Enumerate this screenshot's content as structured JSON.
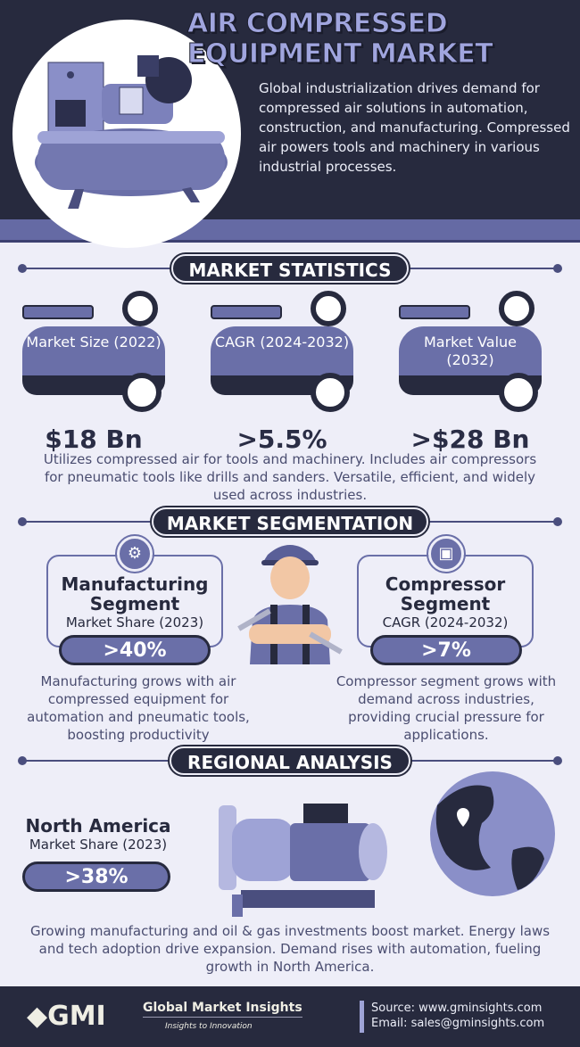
{
  "header": {
    "title_line1": "AIR COMPRESSED",
    "title_line2": "EQUIPMENT MARKET",
    "description": "Global industrialization drives demand for compressed air solutions in automation, construction, and manufacturing. Compressed air powers tools and machinery in various industrial processes."
  },
  "statistics": {
    "heading": "MARKET STATISTICS",
    "cards": [
      {
        "label": "Market Size (2022)",
        "value": "$18 Bn",
        "icon": "pie-chart-icon"
      },
      {
        "label": "CAGR (2024-2032)",
        "value": ">5.5%",
        "icon": "bar-growth-icon"
      },
      {
        "label": "Market Value (2032)",
        "value": ">$28 Bn",
        "icon": "money-growth-icon"
      }
    ],
    "description": "Utilizes compressed air for tools and machinery. Includes air compressors for pneumatic tools like drills and sanders. Versatile, efficient, and widely used across industries."
  },
  "segmentation": {
    "heading": "MARKET SEGMENTATION",
    "segments": [
      {
        "title": "Manufacturing Segment",
        "metric": "Market Share (2023)",
        "value": ">40%",
        "description": "Manufacturing grows with air compressed equipment for automation and pneumatic tools, boosting productivity",
        "icon": "robot-arm-icon"
      },
      {
        "title": "Compressor Segment",
        "metric": "CAGR (2024-2032)",
        "value": ">7%",
        "description": "Compressor segment grows with demand across industries, providing crucial pressure for applications.",
        "icon": "compressor-icon"
      }
    ]
  },
  "regional": {
    "heading": "REGIONAL ANALYSIS",
    "region": "North America",
    "metric": "Market Share (2023)",
    "value": ">38%",
    "description": "Growing manufacturing and oil & gas investments boost market. Energy laws and tech adoption drive expansion. Demand rises with automation, fueling growth in North America."
  },
  "footer": {
    "logo_text": "GMI",
    "brand": "Global Market Insights",
    "tagline": "Insights to Innovation",
    "source": "Source: www.gminsights.com",
    "email": "Email: sales@gminsights.com"
  },
  "colors": {
    "dark": "#272a3e",
    "accent": "#6a6fa8",
    "light": "#a0a5de",
    "background": "#eeeef8"
  }
}
